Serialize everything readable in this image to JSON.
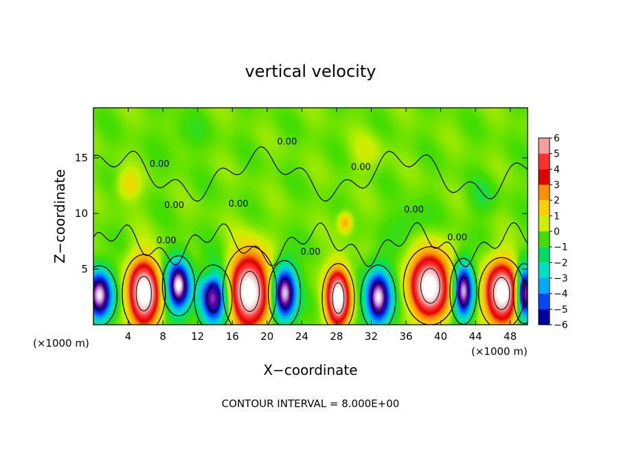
{
  "chart_data": {
    "type": "heatmap",
    "title": "vertical velocity",
    "xlabel": "X−coordinate",
    "ylabel": "Z−coordinate",
    "x_unit_left": "(×1000 m)",
    "x_unit_right": "(×1000 m)",
    "footnote": "CONTOUR INTERVAL = 8.000E+00",
    "xlim": [
      0,
      50
    ],
    "ylim": [
      0,
      19.5
    ],
    "x_ticks": [
      "4",
      "8",
      "12",
      "16",
      "20",
      "24",
      "28",
      "32",
      "36",
      "40",
      "44",
      "48"
    ],
    "y_ticks": [
      "5",
      "10",
      "15"
    ],
    "contour_label": "0.00",
    "colorbar": {
      "levels": [
        "6",
        "5",
        "4",
        "3",
        "2",
        "1",
        "0",
        "−1",
        "−2",
        "−3",
        "−4",
        "−5",
        "−6"
      ],
      "colors": [
        "#f4a0a0",
        "#ff3030",
        "#e00000",
        "#ff9000",
        "#ffd000",
        "#c8f000",
        "#44dd00",
        "#00dd66",
        "#00e0c0",
        "#00a8ff",
        "#0044ff",
        "#0000a0",
        "#7000a0"
      ]
    },
    "background_value": 0.3,
    "updrafts": [
      {
        "x": 5.8,
        "z": 2.8,
        "w": 6,
        "rx": 1.6,
        "rz": 2.6
      },
      {
        "x": 18.0,
        "z": 3.0,
        "w": 6,
        "rx": 2.0,
        "rz": 3.0
      },
      {
        "x": 28.2,
        "z": 2.4,
        "w": 6,
        "rx": 1.2,
        "rz": 2.3
      },
      {
        "x": 38.8,
        "z": 3.5,
        "w": 6,
        "rx": 2.0,
        "rz": 2.6
      },
      {
        "x": 47.0,
        "z": 2.8,
        "w": 6,
        "rx": 1.7,
        "rz": 2.4
      }
    ],
    "downdrafts": [
      {
        "x": 0.7,
        "z": 2.6,
        "w": -6,
        "rx": 1.3,
        "rz": 2.0
      },
      {
        "x": 9.8,
        "z": 3.5,
        "w": -6,
        "rx": 1.2,
        "rz": 2.0
      },
      {
        "x": 13.8,
        "z": 2.4,
        "w": -5,
        "rx": 1.4,
        "rz": 2.2
      },
      {
        "x": 22.0,
        "z": 2.8,
        "w": -6,
        "rx": 1.2,
        "rz": 2.2
      },
      {
        "x": 32.8,
        "z": 2.4,
        "w": -6,
        "rx": 1.3,
        "rz": 2.2
      },
      {
        "x": 42.6,
        "z": 3.0,
        "w": -6,
        "rx": 1.0,
        "rz": 2.2
      },
      {
        "x": 49.6,
        "z": 2.8,
        "w": -6,
        "rx": 0.8,
        "rz": 2.0
      }
    ],
    "weak_features": [
      {
        "x": 4.0,
        "z": 12.5,
        "w": 1.5,
        "rx": 1.2,
        "rz": 1.2
      },
      {
        "x": 29.0,
        "z": 9.2,
        "w": 2.5,
        "rx": 0.7,
        "rz": 0.8
      },
      {
        "x": 13.2,
        "z": 4.7,
        "w": 1.2,
        "rx": 0.8,
        "rz": 0.8
      },
      {
        "x": 36.5,
        "z": 9.0,
        "w": -0.8,
        "rx": 2.0,
        "rz": 1.4
      },
      {
        "x": 44.8,
        "z": 11.5,
        "w": -0.7,
        "rx": 1.5,
        "rz": 1.5
      },
      {
        "x": 31.5,
        "z": 15.5,
        "w": 0.7,
        "rx": 1.8,
        "rz": 1.5
      },
      {
        "x": 10.5,
        "z": 17.0,
        "w": -0.5,
        "rx": 2.0,
        "rz": 1.5
      }
    ]
  }
}
